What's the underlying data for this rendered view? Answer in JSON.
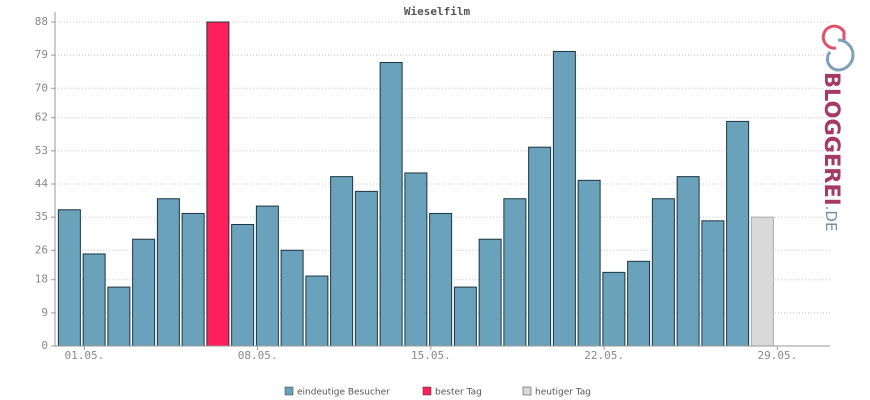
{
  "chart_data": {
    "type": "bar",
    "title": "Wieselfilm",
    "categories": [
      "01.05.",
      null,
      null,
      null,
      null,
      null,
      null,
      "08.05.",
      null,
      null,
      null,
      null,
      null,
      null,
      "15.05.",
      null,
      null,
      null,
      null,
      null,
      null,
      "22.05.",
      null,
      null,
      null,
      null,
      null,
      null,
      "29.05."
    ],
    "series": [
      {
        "name": "eindeutige Besucher",
        "color": "#6aa2bb",
        "values": [
          37,
          25,
          16,
          29,
          40,
          36,
          null,
          33,
          38,
          26,
          19,
          46,
          42,
          77,
          47,
          36,
          16,
          29,
          40,
          54,
          80,
          45,
          20,
          23,
          40,
          46,
          34,
          61,
          null
        ]
      },
      {
        "name": "bester Tag",
        "color": "#ff1f5a",
        "values": [
          null,
          null,
          null,
          null,
          null,
          null,
          88,
          null,
          null,
          null,
          null,
          null,
          null,
          null,
          null,
          null,
          null,
          null,
          null,
          null,
          null,
          null,
          null,
          null,
          null,
          null,
          null,
          null,
          null
        ]
      },
      {
        "name": "heutiger Tag",
        "color": "#d9d9d9",
        "values": [
          null,
          null,
          null,
          null,
          null,
          null,
          null,
          null,
          null,
          null,
          null,
          null,
          null,
          null,
          null,
          null,
          null,
          null,
          null,
          null,
          null,
          null,
          null,
          null,
          null,
          null,
          null,
          null,
          35
        ]
      }
    ],
    "ylim": [
      0,
      88
    ],
    "yticks": [
      0,
      9,
      18,
      26,
      35,
      44,
      53,
      62,
      70,
      79,
      88
    ],
    "grid": true,
    "logo": {
      "text": "BLOGGEREI",
      "suffix": ".DE"
    }
  }
}
